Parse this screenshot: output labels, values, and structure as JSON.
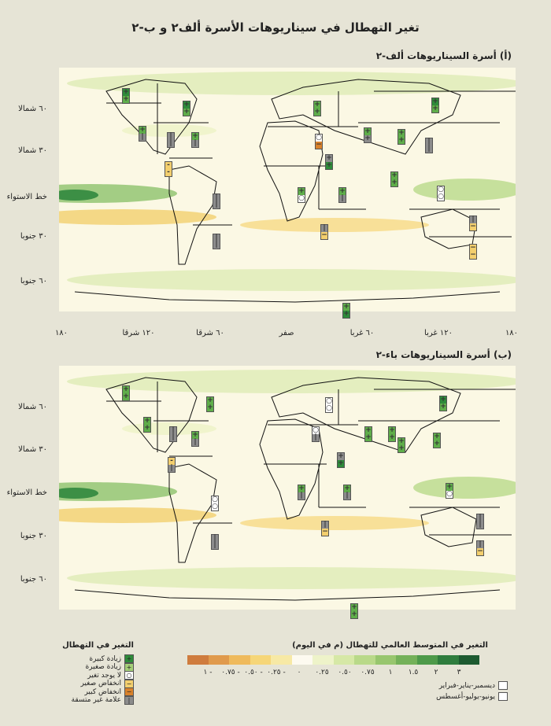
{
  "title": "تغير التهطال في سيناريوهات الأسرة ألف٢ و ب-٢",
  "panel_a": {
    "title": "(أ) أسرة السيناريوهات ألف-٢"
  },
  "panel_b": {
    "title": "(ب) أسرة السيناريوهات باء-٢"
  },
  "lat_labels_a": [
    "٦٠ شمالا",
    "٣٠ شمالا",
    "خط الاستواء",
    "٣٠ جنوبا",
    "٦٠ جنوبا"
  ],
  "lat_labels_b": [
    "٦٠ شمالا",
    "٣٠ شمالا",
    "خط الاستواء",
    "٣٠ جنوبا",
    "٦٠ جنوبا"
  ],
  "lon_labels": [
    "١٨٠",
    "١٢٠ شرقا",
    "٦٠ شرقا",
    "صفر",
    "٦٠ غربا",
    "١٢٠ غربا",
    "١٨٠"
  ],
  "legend": {
    "symbols_title": "التغير في التهطال",
    "symbols": [
      {
        "mark": "+",
        "label": "زيادة كبيرة",
        "color": "#2e8b3a"
      },
      {
        "mark": "+",
        "label": "زيادة صغيرة",
        "color": "#a4cf78"
      },
      {
        "mark": "○",
        "label": "لا يوجد تغير",
        "color": "#ffffff"
      },
      {
        "mark": "−",
        "label": "انخفاض صغير",
        "color": "#f3cf6e"
      },
      {
        "mark": "−",
        "label": "انخفاض كبير",
        "color": "#d9822b"
      },
      {
        "mark": "|",
        "label": "علامة غير متسقة",
        "color": "#8c8c8c"
      }
    ],
    "scale_title": "التغير في المتوسط العالمي للتهطال (م في اليوم)",
    "scale_colors": [
      "#cf7c3e",
      "#e09a4c",
      "#efba5c",
      "#f6d678",
      "#f7e9a5",
      "#fdfaf0",
      "#eef3c9",
      "#d6e8a6",
      "#b9d989",
      "#98c66e",
      "#74b159",
      "#4e9a4a",
      "#2f7d3e",
      "#1d5a30"
    ],
    "scale_labels": [
      "- ١",
      "- ٠.٧٥",
      "- ٠.٥٠",
      "- ٠.٢٥",
      "٠",
      "٠.٢٥",
      "٠.٥٠",
      "٠.٧٥",
      "١",
      "١.٥",
      "٢",
      "٣"
    ],
    "seasons": [
      "ديسمبر-يناير-فبراير",
      "يونيو-يوليو-أغسطس"
    ]
  },
  "symbol_colors": {
    "+": "#5fae4a",
    "++": "#2e8b3a",
    "o": "#ffffff",
    "-": "#f3cf6e",
    "--": "#d9822b",
    "|": "#8c8c8c"
  },
  "regions_a": [
    {
      "col": 155,
      "row": 112,
      "top": "+",
      "bottom": "+",
      "tc": "++",
      "bc": "+"
    },
    {
      "col": 232,
      "row": 128,
      "top": "+",
      "bottom": "+",
      "tc": "++",
      "bc": "+"
    },
    {
      "col": 176,
      "row": 160,
      "top": "+",
      "bottom": "|",
      "tc": "+",
      "bc": "|"
    },
    {
      "col": 212,
      "row": 168,
      "top": "|",
      "bottom": "|",
      "tc": "|",
      "bc": "|"
    },
    {
      "col": 243,
      "row": 168,
      "top": "+",
      "bottom": "|",
      "tc": "+",
      "bc": "|"
    },
    {
      "col": 209,
      "row": 205,
      "top": "-",
      "bottom": "-",
      "tc": "-",
      "bc": "-"
    },
    {
      "col": 270,
      "row": 246,
      "top": "|",
      "bottom": "|",
      "tc": "|",
      "bc": "|"
    },
    {
      "col": 270,
      "row": 297,
      "top": "|",
      "bottom": "|",
      "tc": "|",
      "bc": "|"
    },
    {
      "col": 398,
      "row": 128,
      "top": "+",
      "bottom": "+",
      "tc": "+",
      "bc": "+"
    },
    {
      "col": 400,
      "row": 170,
      "top": "○",
      "bottom": "−",
      "tc": "o",
      "bc": "--"
    },
    {
      "col": 413,
      "row": 196,
      "top": "+",
      "bottom": "+",
      "tc": "|",
      "bc": "++"
    },
    {
      "col": 378,
      "row": 238,
      "top": "+",
      "bottom": "○",
      "tc": "+",
      "bc": "o"
    },
    {
      "col": 430,
      "row": 238,
      "top": "+",
      "bottom": "|",
      "tc": "+",
      "bc": "|"
    },
    {
      "col": 407,
      "row": 285,
      "top": "|",
      "bottom": "−",
      "tc": "|",
      "bc": "-"
    },
    {
      "col": 462,
      "row": 162,
      "top": "+",
      "bottom": "+",
      "tc": "+",
      "bc": "|"
    },
    {
      "col": 505,
      "row": 164,
      "top": "+",
      "bottom": "+",
      "tc": "+",
      "bc": "+"
    },
    {
      "col": 540,
      "row": 175,
      "top": "|",
      "bottom": "|",
      "tc": "|",
      "bc": "|"
    },
    {
      "col": 548,
      "row": 124,
      "top": "+",
      "bottom": "+",
      "tc": "++",
      "bc": "+"
    },
    {
      "col": 496,
      "row": 218,
      "top": "+",
      "bottom": "+",
      "tc": "+",
      "bc": "+"
    },
    {
      "col": 555,
      "row": 236,
      "top": "○",
      "bottom": "○",
      "tc": "o",
      "bc": "o"
    },
    {
      "col": 596,
      "row": 274,
      "top": "|",
      "bottom": "−",
      "tc": "|",
      "bc": "-"
    },
    {
      "col": 596,
      "row": 310,
      "top": "−",
      "bottom": "−",
      "tc": "-",
      "bc": "-"
    },
    {
      "col": 435,
      "row": 385,
      "top": "+",
      "bottom": "+",
      "tc": "+",
      "bc": "++"
    }
  ],
  "regions_b": [
    {
      "col": 155,
      "row": 490,
      "top": "+",
      "bottom": "+",
      "tc": "+",
      "bc": "+"
    },
    {
      "col": 182,
      "row": 530,
      "top": "+",
      "bottom": "+",
      "tc": "+",
      "bc": "+"
    },
    {
      "col": 215,
      "row": 542,
      "top": "|",
      "bottom": "|",
      "tc": "|",
      "bc": "|"
    },
    {
      "col": 243,
      "row": 548,
      "top": "+",
      "bottom": "|",
      "tc": "+",
      "bc": "|"
    },
    {
      "col": 213,
      "row": 581,
      "top": "-",
      "bottom": "|",
      "tc": "-",
      "bc": "|"
    },
    {
      "col": 268,
      "row": 630,
      "top": "○",
      "bottom": "○",
      "tc": "o",
      "bc": "o"
    },
    {
      "col": 268,
      "row": 679,
      "top": "|",
      "bottom": "|",
      "tc": "|",
      "bc": "|"
    },
    {
      "col": 262,
      "row": 504,
      "top": "+",
      "bottom": "+",
      "tc": "+",
      "bc": "+"
    },
    {
      "col": 396,
      "row": 542,
      "top": "○",
      "bottom": "|",
      "tc": "o",
      "bc": "|"
    },
    {
      "col": 413,
      "row": 505,
      "top": "○",
      "bottom": "○",
      "tc": "o",
      "bc": "o"
    },
    {
      "col": 428,
      "row": 575,
      "top": "+",
      "bottom": "+",
      "tc": "|",
      "bc": "++"
    },
    {
      "col": 378,
      "row": 616,
      "top": "+",
      "bottom": "|",
      "tc": "+",
      "bc": "|"
    },
    {
      "col": 436,
      "row": 616,
      "top": "+",
      "bottom": "|",
      "tc": "+",
      "bc": "|"
    },
    {
      "col": 408,
      "row": 662,
      "top": "|",
      "bottom": "−",
      "tc": "|",
      "bc": "-"
    },
    {
      "col": 463,
      "row": 542,
      "top": "+",
      "bottom": "+",
      "tc": "+",
      "bc": "+"
    },
    {
      "col": 493,
      "row": 542,
      "top": "+",
      "bottom": "+",
      "tc": "+",
      "bc": "+"
    },
    {
      "col": 505,
      "row": 556,
      "top": "+",
      "bottom": "+",
      "tc": "+",
      "bc": "+"
    },
    {
      "col": 550,
      "row": 550,
      "top": "+",
      "bottom": "+",
      "tc": "+",
      "bc": "+"
    },
    {
      "col": 558,
      "row": 503,
      "top": "+",
      "bottom": "+",
      "tc": "++",
      "bc": "+"
    },
    {
      "col": 566,
      "row": 614,
      "top": "+",
      "bottom": "○",
      "tc": "+",
      "bc": "o"
    },
    {
      "col": 605,
      "row": 653,
      "top": "|",
      "bottom": "|",
      "tc": "|",
      "bc": "|"
    },
    {
      "col": 605,
      "row": 687,
      "top": "|",
      "bottom": "−",
      "tc": "|",
      "bc": "-"
    },
    {
      "col": 445,
      "row": 767,
      "top": "+",
      "bottom": "+",
      "tc": "+",
      "bc": "+"
    }
  ]
}
